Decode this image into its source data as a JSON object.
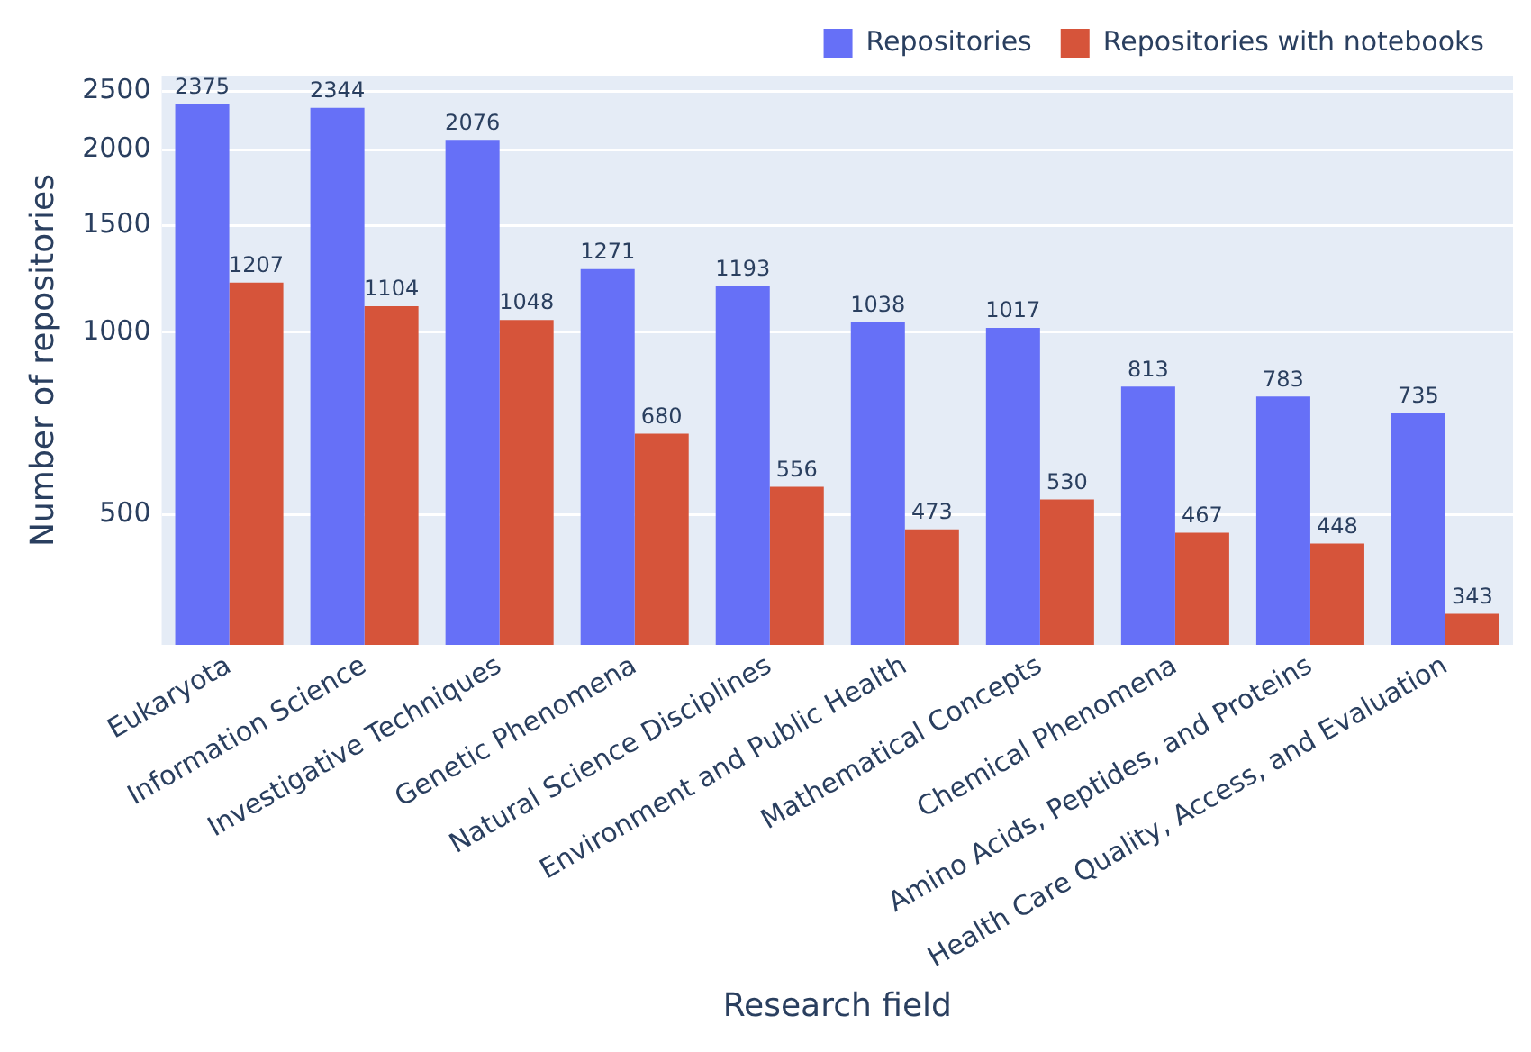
{
  "chart_data": {
    "type": "bar",
    "xlabel": "Research field",
    "ylabel": "Number of repositories",
    "categories": [
      "Eukaryota",
      "Information Science",
      "Investigative Techniques",
      "Genetic Phenomena",
      "Natural Science Disciplines",
      "Environment and Public Health",
      "Mathematical Concepts",
      "Chemical Phenomena",
      "Amino Acids, Peptides, and Proteins",
      "Health Care Quality, Access, and Evaluation"
    ],
    "series": [
      {
        "name": "Repositories",
        "color": "#6670f7",
        "values": [
          2375,
          2344,
          2076,
          1271,
          1193,
          1038,
          1017,
          813,
          783,
          735
        ]
      },
      {
        "name": "Repositories with notebooks",
        "color": "#d6543a",
        "values": [
          1207,
          1104,
          1048,
          680,
          556,
          473,
          530,
          467,
          448,
          343
        ]
      }
    ],
    "log": "y",
    "ylim": [
      305,
      2650
    ],
    "yticks": [
      500,
      1000,
      1500,
      2000,
      2500
    ],
    "grid": "y",
    "legend": "top right",
    "data_labels": true
  }
}
